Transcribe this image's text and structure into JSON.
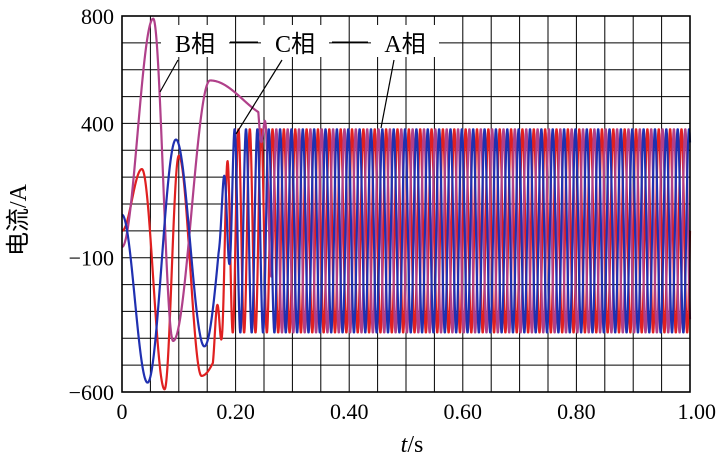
{
  "chart_data": {
    "type": "line",
    "xlabel_var": "t",
    "xlabel_unit": "/s",
    "ylabel": "电流/A",
    "xlim": [
      0,
      1.0
    ],
    "ylim": [
      -600,
      800
    ],
    "x_ticks": [
      {
        "value": 0,
        "label": "0"
      },
      {
        "value": 0.2,
        "label": "0.20"
      },
      {
        "value": 0.4,
        "label": "0.40"
      },
      {
        "value": 0.6,
        "label": "0.60"
      },
      {
        "value": 0.8,
        "label": "0.80"
      },
      {
        "value": 1.0,
        "label": "1.00"
      }
    ],
    "y_ticks": [
      {
        "value": 800,
        "label": "800"
      },
      {
        "value": 400,
        "label": "400"
      },
      {
        "value": -100,
        "label": "−100"
      },
      {
        "value": -600,
        "label": "−600"
      }
    ],
    "grid": true,
    "frequency_hz": 50,
    "steady_state": {
      "max": 380,
      "min": -380
    },
    "series": [
      {
        "name": "A相",
        "color": "#e02020",
        "phase_deg": 0,
        "transient": [
          {
            "t": 0.0,
            "y": 0
          },
          {
            "t": 0.035,
            "y": 230
          },
          {
            "t": 0.075,
            "y": -590
          },
          {
            "t": 0.1,
            "y": 280
          },
          {
            "t": 0.14,
            "y": -540
          },
          {
            "t": 0.19,
            "y": -400
          }
        ]
      },
      {
        "name": "B相",
        "color": "#b0408a",
        "phase_deg": -120,
        "transient": [
          {
            "t": 0.0,
            "y": -60
          },
          {
            "t": 0.055,
            "y": 790
          },
          {
            "t": 0.09,
            "y": -410
          },
          {
            "t": 0.155,
            "y": 560
          },
          {
            "t": 0.27,
            "y": 420
          }
        ]
      },
      {
        "name": "C相",
        "color": "#2030b0",
        "phase_deg": 120,
        "transient": [
          {
            "t": 0.0,
            "y": 60
          },
          {
            "t": 0.045,
            "y": -565
          },
          {
            "t": 0.095,
            "y": 340
          },
          {
            "t": 0.145,
            "y": -430
          },
          {
            "t": 0.2,
            "y": 380
          }
        ]
      }
    ],
    "annotations": [
      {
        "text": "B相",
        "series": "B相"
      },
      {
        "text": "C相",
        "series": "C相"
      },
      {
        "text": "A相",
        "series": "A相"
      }
    ]
  }
}
